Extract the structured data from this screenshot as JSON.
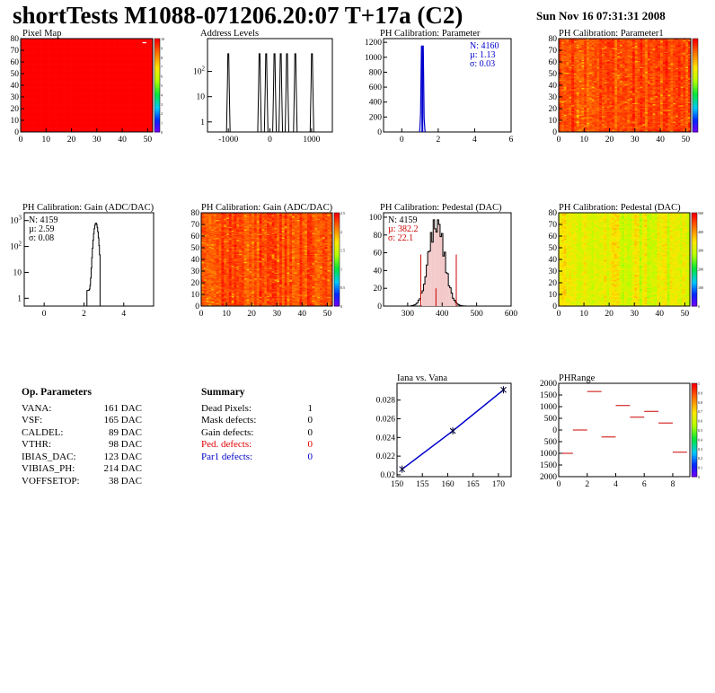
{
  "header": {
    "title": "shortTests M1088-071206.20:07 T+17a (C2)",
    "date": "Sun Nov 16 07:31:31 2008"
  },
  "colors": {
    "ped_defects": "#e00000",
    "par1_defects": "#0000cc",
    "calib_line": "#0000cc",
    "fit_line": "#cc0000",
    "stat_blue": "#0000cc",
    "stat_red": "#cc0000"
  },
  "op_params": {
    "title": "Op. Parameters",
    "rows": [
      {
        "name": "VANA:",
        "value": "161 DAC"
      },
      {
        "name": "VSF:",
        "value": "165 DAC"
      },
      {
        "name": "CALDEL:",
        "value": "89 DAC"
      },
      {
        "name": "VTHR:",
        "value": "98 DAC"
      },
      {
        "name": "IBIAS_DAC:",
        "value": "123 DAC"
      },
      {
        "name": "VIBIAS_PH:",
        "value": "214 DAC"
      },
      {
        "name": "VOFFSETOP:",
        "value": "38 DAC"
      }
    ]
  },
  "summary": {
    "title": "Summary",
    "rows": [
      {
        "name": "Dead Pixels:",
        "value": "1",
        "color": ""
      },
      {
        "name": "Mask defects:",
        "value": "0",
        "color": ""
      },
      {
        "name": "Gain defects:",
        "value": "0",
        "color": ""
      },
      {
        "name": "Ped. defects:",
        "value": "0",
        "color": "#e00000"
      },
      {
        "name": "Par1 defects:",
        "value": "0",
        "color": "#0000cc"
      }
    ]
  },
  "chart_data": [
    {
      "id": "pixel-map",
      "type": "heatmap",
      "title": "Pixel Map",
      "xlim": [
        0,
        52
      ],
      "ylim": [
        0,
        80
      ],
      "xticks": [
        "0",
        "10",
        "20",
        "30",
        "40",
        "50"
      ],
      "yticks": [
        "0",
        "10",
        "20",
        "30",
        "40",
        "50",
        "60",
        "70",
        "80"
      ],
      "zticks": [
        "0",
        "1",
        "2",
        "3",
        "4",
        "5",
        "6",
        "7",
        "8",
        "9",
        "10"
      ],
      "fill": "uniform",
      "dead_pixels": [
        {
          "x": 48,
          "y": 76
        }
      ]
    },
    {
      "id": "address-levels",
      "type": "bar",
      "title": "Address Levels",
      "log_y": true,
      "xlim": [
        -1500,
        1500
      ],
      "xticks": [
        "-1000",
        "0",
        "1000"
      ],
      "yticks": [
        "1",
        "10",
        "10^2"
      ],
      "peaks": [
        -1000,
        -250,
        -90,
        110,
        260,
        410,
        610,
        1010
      ]
    },
    {
      "id": "ph-cal-parameter",
      "type": "bar",
      "title": "PH Calibration: Parameter",
      "xlim": [
        -1,
        6
      ],
      "ylim": [
        0,
        1250
      ],
      "xticks": [
        "0",
        "2",
        "4",
        "6"
      ],
      "yticks": [
        "0",
        "200",
        "400",
        "600",
        "800",
        "1000",
        "1200"
      ],
      "stats": [
        "N: 4160",
        "µ: 1.13",
        "σ: 0.03"
      ],
      "mean": 1.13,
      "sigma": 0.03,
      "peak": 1150
    },
    {
      "id": "ph-cal-parameter1",
      "type": "heatmap",
      "title": "PH Calibration: Parameter1",
      "xlim": [
        0,
        52
      ],
      "ylim": [
        0,
        80
      ],
      "xticks": [
        "0",
        "10",
        "20",
        "30",
        "40",
        "50"
      ],
      "yticks": [
        "0",
        "10",
        "20",
        "30",
        "40",
        "50",
        "60",
        "70",
        "80"
      ],
      "fill": "mostly-red"
    },
    {
      "id": "ph-cal-gain-hist",
      "type": "bar",
      "title": "PH Calibration: Gain (ADC/DAC)",
      "log_y": true,
      "xlim": [
        -1,
        5.5
      ],
      "xticks": [
        "0",
        "2",
        "4"
      ],
      "yticks": [
        "1",
        "10",
        "10^2",
        "10^3"
      ],
      "stats": [
        "N: 4159",
        "µ: 2.59",
        "σ: 0.08"
      ],
      "mean": 2.59,
      "sigma": 0.08,
      "peak": 800
    },
    {
      "id": "ph-cal-gain-map",
      "type": "heatmap",
      "title": "PH Calibration: Gain (ADC/DAC)",
      "xlim": [
        0,
        52
      ],
      "ylim": [
        0,
        80
      ],
      "xticks": [
        "0",
        "10",
        "20",
        "30",
        "40",
        "50"
      ],
      "yticks": [
        "0",
        "10",
        "20",
        "30",
        "40",
        "50",
        "60",
        "70",
        "80"
      ],
      "zticks": [
        "0",
        "0.5",
        "1",
        "1.5",
        "2",
        "2.5"
      ],
      "fill": "mostly-red"
    },
    {
      "id": "ph-cal-pedestal-hist",
      "type": "bar",
      "title": "PH Calibration: Pedestal (DAC)",
      "xlim": [
        230,
        600
      ],
      "ylim": [
        0,
        105
      ],
      "xticks": [
        "300",
        "400",
        "500",
        "600"
      ],
      "yticks": [
        "0",
        "20",
        "40",
        "60",
        "80",
        "100"
      ],
      "stats": [
        "N: 4159",
        "µ: 382.2",
        "σ: 22.1"
      ],
      "mean": 382.2,
      "sigma": 22.1,
      "peak": 97,
      "cut_lines": [
        338,
        382,
        441
      ]
    },
    {
      "id": "ph-cal-pedestal-map",
      "type": "heatmap",
      "title": "PH Calibration: Pedestal (DAC)",
      "xlim": [
        0,
        52
      ],
      "ylim": [
        0,
        80
      ],
      "xticks": [
        "0",
        "10",
        "20",
        "30",
        "40",
        "50"
      ],
      "yticks": [
        "0",
        "10",
        "20",
        "30",
        "40",
        "50",
        "60",
        "70",
        "80"
      ],
      "zticks": [
        "0",
        "100",
        "200",
        "300",
        "400",
        "500"
      ],
      "fill": "yellow-green"
    },
    {
      "id": "iana-vs-vana",
      "type": "scatter",
      "title": "Iana vs. Vana",
      "xlim": [
        150,
        172.5
      ],
      "ylim": [
        0.0198,
        0.0298
      ],
      "xticks": [
        "150",
        "155",
        "160",
        "165",
        "170"
      ],
      "yticks": [
        "0.02",
        "0.022",
        "0.024",
        "0.026",
        "0.028"
      ],
      "x": [
        151,
        161,
        171
      ],
      "y": [
        0.0206,
        0.0247,
        0.0291
      ]
    },
    {
      "id": "ph-range",
      "type": "bar",
      "title": "PHRange",
      "xlim": [
        0,
        9.2
      ],
      "ylim": [
        -2000,
        2000
      ],
      "xticks": [
        "0",
        "2",
        "4",
        "6",
        "8"
      ],
      "yticks": [
        "2000",
        "1500",
        "1000",
        "500",
        "0",
        "500",
        "1000",
        "1500",
        "2000"
      ],
      "zticks": [
        "0",
        "0.1",
        "0.2",
        "0.3",
        "0.4",
        "0.5",
        "0.6",
        "0.7",
        "0.8",
        "0.9",
        "1"
      ],
      "x": [
        0,
        1,
        2,
        3,
        4,
        5,
        6,
        7,
        8
      ],
      "values": [
        -1000,
        0,
        1650,
        -300,
        1050,
        550,
        800,
        300,
        -950
      ]
    }
  ]
}
